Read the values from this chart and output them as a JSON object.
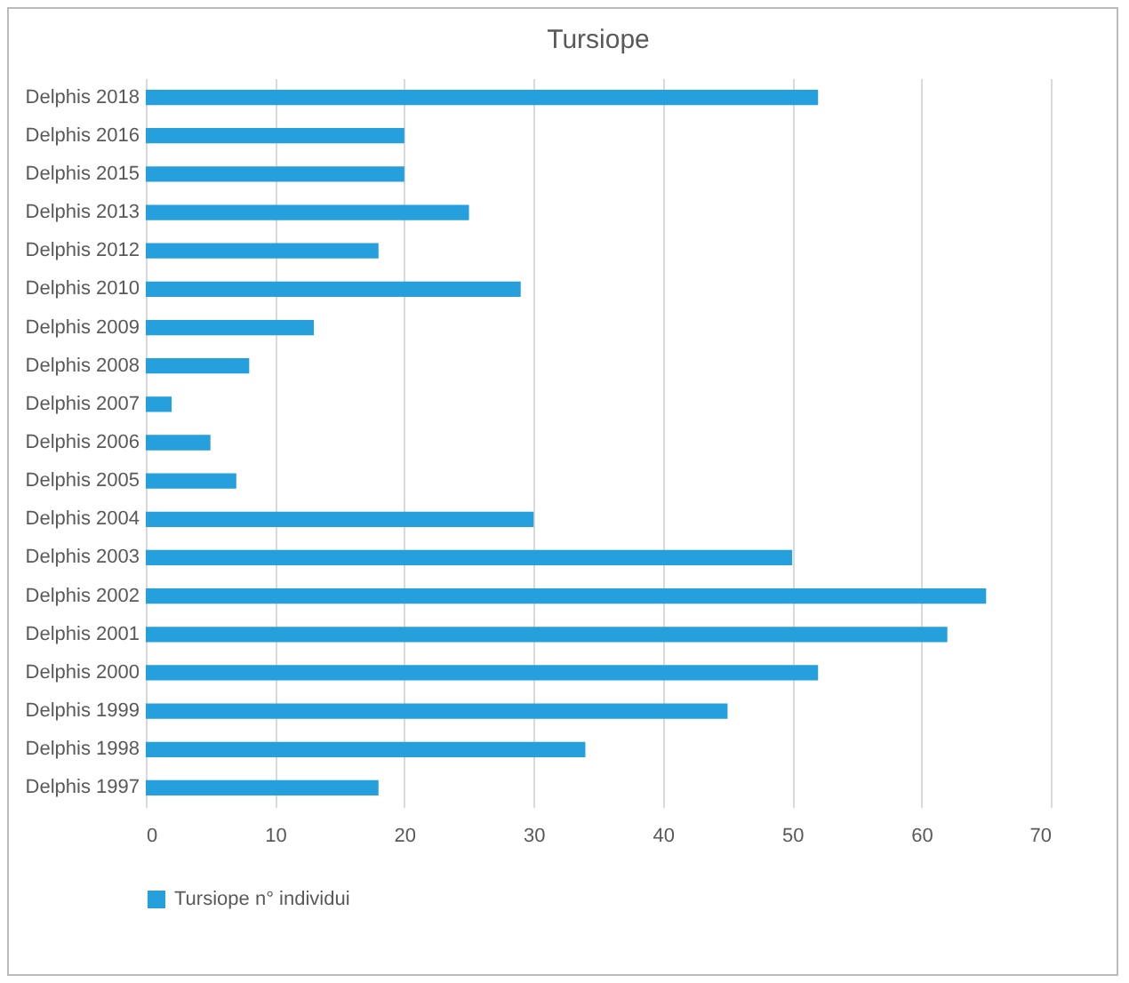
{
  "chart_data": {
    "type": "bar",
    "orientation": "horizontal",
    "title": "Tursiope",
    "categories": [
      "Delphis 2018",
      "Delphis 2016",
      "Delphis 2015",
      "Delphis 2013",
      "Delphis 2012",
      "Delphis 2010",
      "Delphis 2009",
      "Delphis 2008",
      "Delphis 2007",
      "Delphis 2006",
      "Delphis 2005",
      "Delphis 2004",
      "Delphis 2003",
      "Delphis 2002",
      "Delphis 2001",
      "Delphis 2000",
      "Delphis 1999",
      "Delphis 1998",
      "Delphis 1997"
    ],
    "series": [
      {
        "name": "Tursiope n° individui",
        "color": "#25a0dc",
        "values": [
          52,
          20,
          20,
          25,
          18,
          29,
          13,
          8,
          2,
          5,
          7,
          30,
          50,
          65,
          62,
          52,
          45,
          34,
          18
        ]
      }
    ],
    "xlim": [
      0,
      70
    ],
    "xticks": [
      0,
      10,
      20,
      30,
      40,
      50,
      60,
      70
    ],
    "grid": "x",
    "legend": "bottom"
  }
}
